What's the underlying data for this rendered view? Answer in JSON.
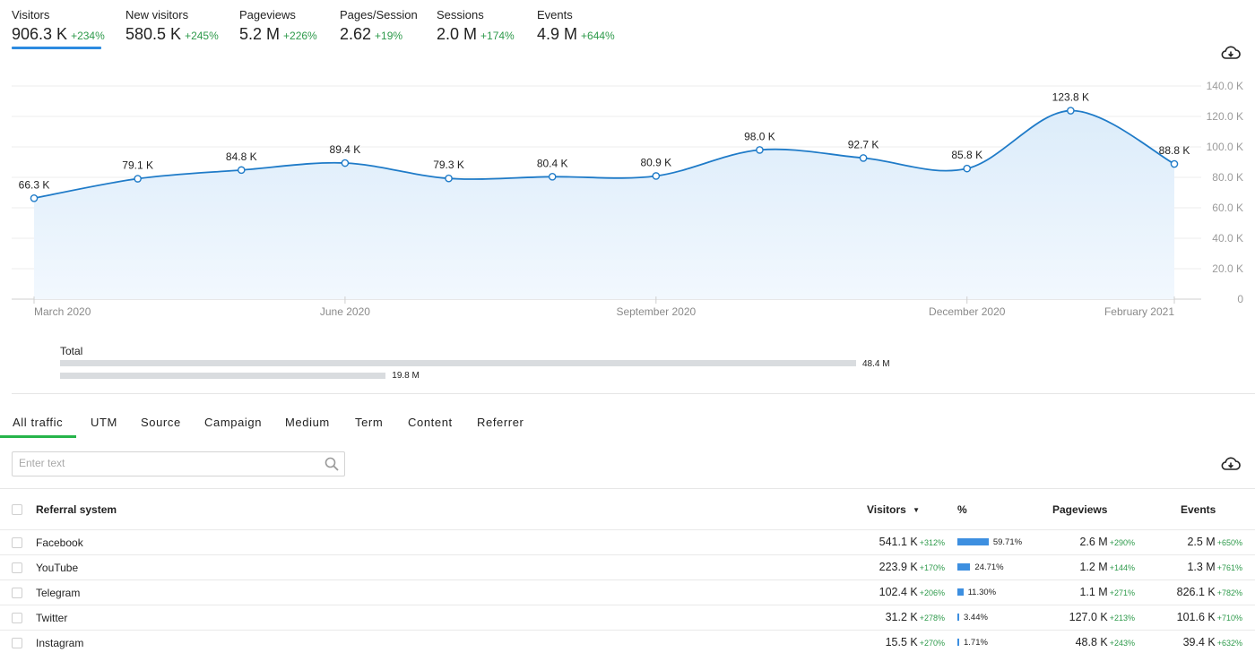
{
  "kpis": [
    {
      "label": "Visitors",
      "value": "906.3 K",
      "delta": "+234%"
    },
    {
      "label": "New visitors",
      "value": "580.5 K",
      "delta": "+245%"
    },
    {
      "label": "Pageviews",
      "value": "5.2 M",
      "delta": "+226%"
    },
    {
      "label": "Pages/Session",
      "value": "2.62",
      "delta": "+19%"
    },
    {
      "label": "Sessions",
      "value": "2.0 M",
      "delta": "+174%"
    },
    {
      "label": "Events",
      "value": "4.9 M",
      "delta": "+644%"
    }
  ],
  "icons": {
    "download": "cloud-download-icon",
    "search": "search-icon",
    "sort": "sort-desc-icon"
  },
  "colors": {
    "accent": "#2d8be0",
    "positive": "#2e9a4b",
    "active_tab": "#26b44a",
    "line": "#1f7bc8",
    "area": "#e3f0fb"
  },
  "chart_data": {
    "type": "area",
    "x": [
      "2020-03",
      "2020-04",
      "2020-05",
      "2020-06",
      "2020-07",
      "2020-08",
      "2020-09",
      "2020-10",
      "2020-11",
      "2020-12",
      "2021-01",
      "2021-02"
    ],
    "values": [
      66.3,
      79.1,
      84.8,
      89.4,
      79.3,
      80.4,
      80.9,
      98.0,
      92.7,
      85.8,
      123.8,
      88.8
    ],
    "point_labels": [
      "66.3 K",
      "79.1 K",
      "84.8 K",
      "89.4 K",
      "79.3 K",
      "80.4 K",
      "80.9 K",
      "98.0 K",
      "92.7 K",
      "85.8 K",
      "123.8 K",
      "88.8 K"
    ],
    "x_tick_labels": [
      {
        "index": 0,
        "label": "March 2020"
      },
      {
        "index": 3,
        "label": "June 2020"
      },
      {
        "index": 6,
        "label": "September 2020"
      },
      {
        "index": 9,
        "label": "December 2020"
      },
      {
        "index": 11,
        "label": "February 2021"
      }
    ],
    "y_ticks": [
      0,
      20,
      40,
      60,
      80,
      100,
      120,
      140
    ],
    "y_tick_labels": [
      "0",
      "20.0 K",
      "40.0 K",
      "60.0 K",
      "80.0 K",
      "100.0 K",
      "120.0 K",
      "140.0 K"
    ],
    "ylim": [
      0,
      140
    ],
    "grid": true,
    "y_axis_position": "right"
  },
  "totals": {
    "label": "Total",
    "bars": [
      {
        "value": 48.4,
        "label": "48.4 M"
      },
      {
        "value": 19.8,
        "label": "19.8 M"
      }
    ]
  },
  "tabs": [
    "All traffic",
    "UTM",
    "Source",
    "Campaign",
    "Medium",
    "Term",
    "Content",
    "Referrer"
  ],
  "active_tab": "All traffic",
  "search": {
    "placeholder": "Enter text",
    "value": ""
  },
  "table": {
    "columns": {
      "name": "Referral system",
      "visitors": "Visitors",
      "percent": "%",
      "pageviews": "Pageviews",
      "events": "Events"
    },
    "rows": [
      {
        "name": "Facebook",
        "visitors": "541.1 K",
        "visitors_delta": "+312%",
        "percent": 59.71,
        "percent_label": "59.71%",
        "pageviews": "2.6 M",
        "pageviews_delta": "+290%",
        "events": "2.5 M",
        "events_delta": "+650%"
      },
      {
        "name": "YouTube",
        "visitors": "223.9 K",
        "visitors_delta": "+170%",
        "percent": 24.71,
        "percent_label": "24.71%",
        "pageviews": "1.2 M",
        "pageviews_delta": "+144%",
        "events": "1.3 M",
        "events_delta": "+761%"
      },
      {
        "name": "Telegram",
        "visitors": "102.4 K",
        "visitors_delta": "+206%",
        "percent": 11.3,
        "percent_label": "11.30%",
        "pageviews": "1.1 M",
        "pageviews_delta": "+271%",
        "events": "826.1 K",
        "events_delta": "+782%"
      },
      {
        "name": "Twitter",
        "visitors": "31.2 K",
        "visitors_delta": "+278%",
        "percent": 3.44,
        "percent_label": "3.44%",
        "pageviews": "127.0 K",
        "pageviews_delta": "+213%",
        "events": "101.6 K",
        "events_delta": "+710%"
      },
      {
        "name": "Instagram",
        "visitors": "15.5 K",
        "visitors_delta": "+270%",
        "percent": 1.71,
        "percent_label": "1.71%",
        "pageviews": "48.8 K",
        "pageviews_delta": "+243%",
        "events": "39.4 K",
        "events_delta": "+632%"
      }
    ]
  }
}
